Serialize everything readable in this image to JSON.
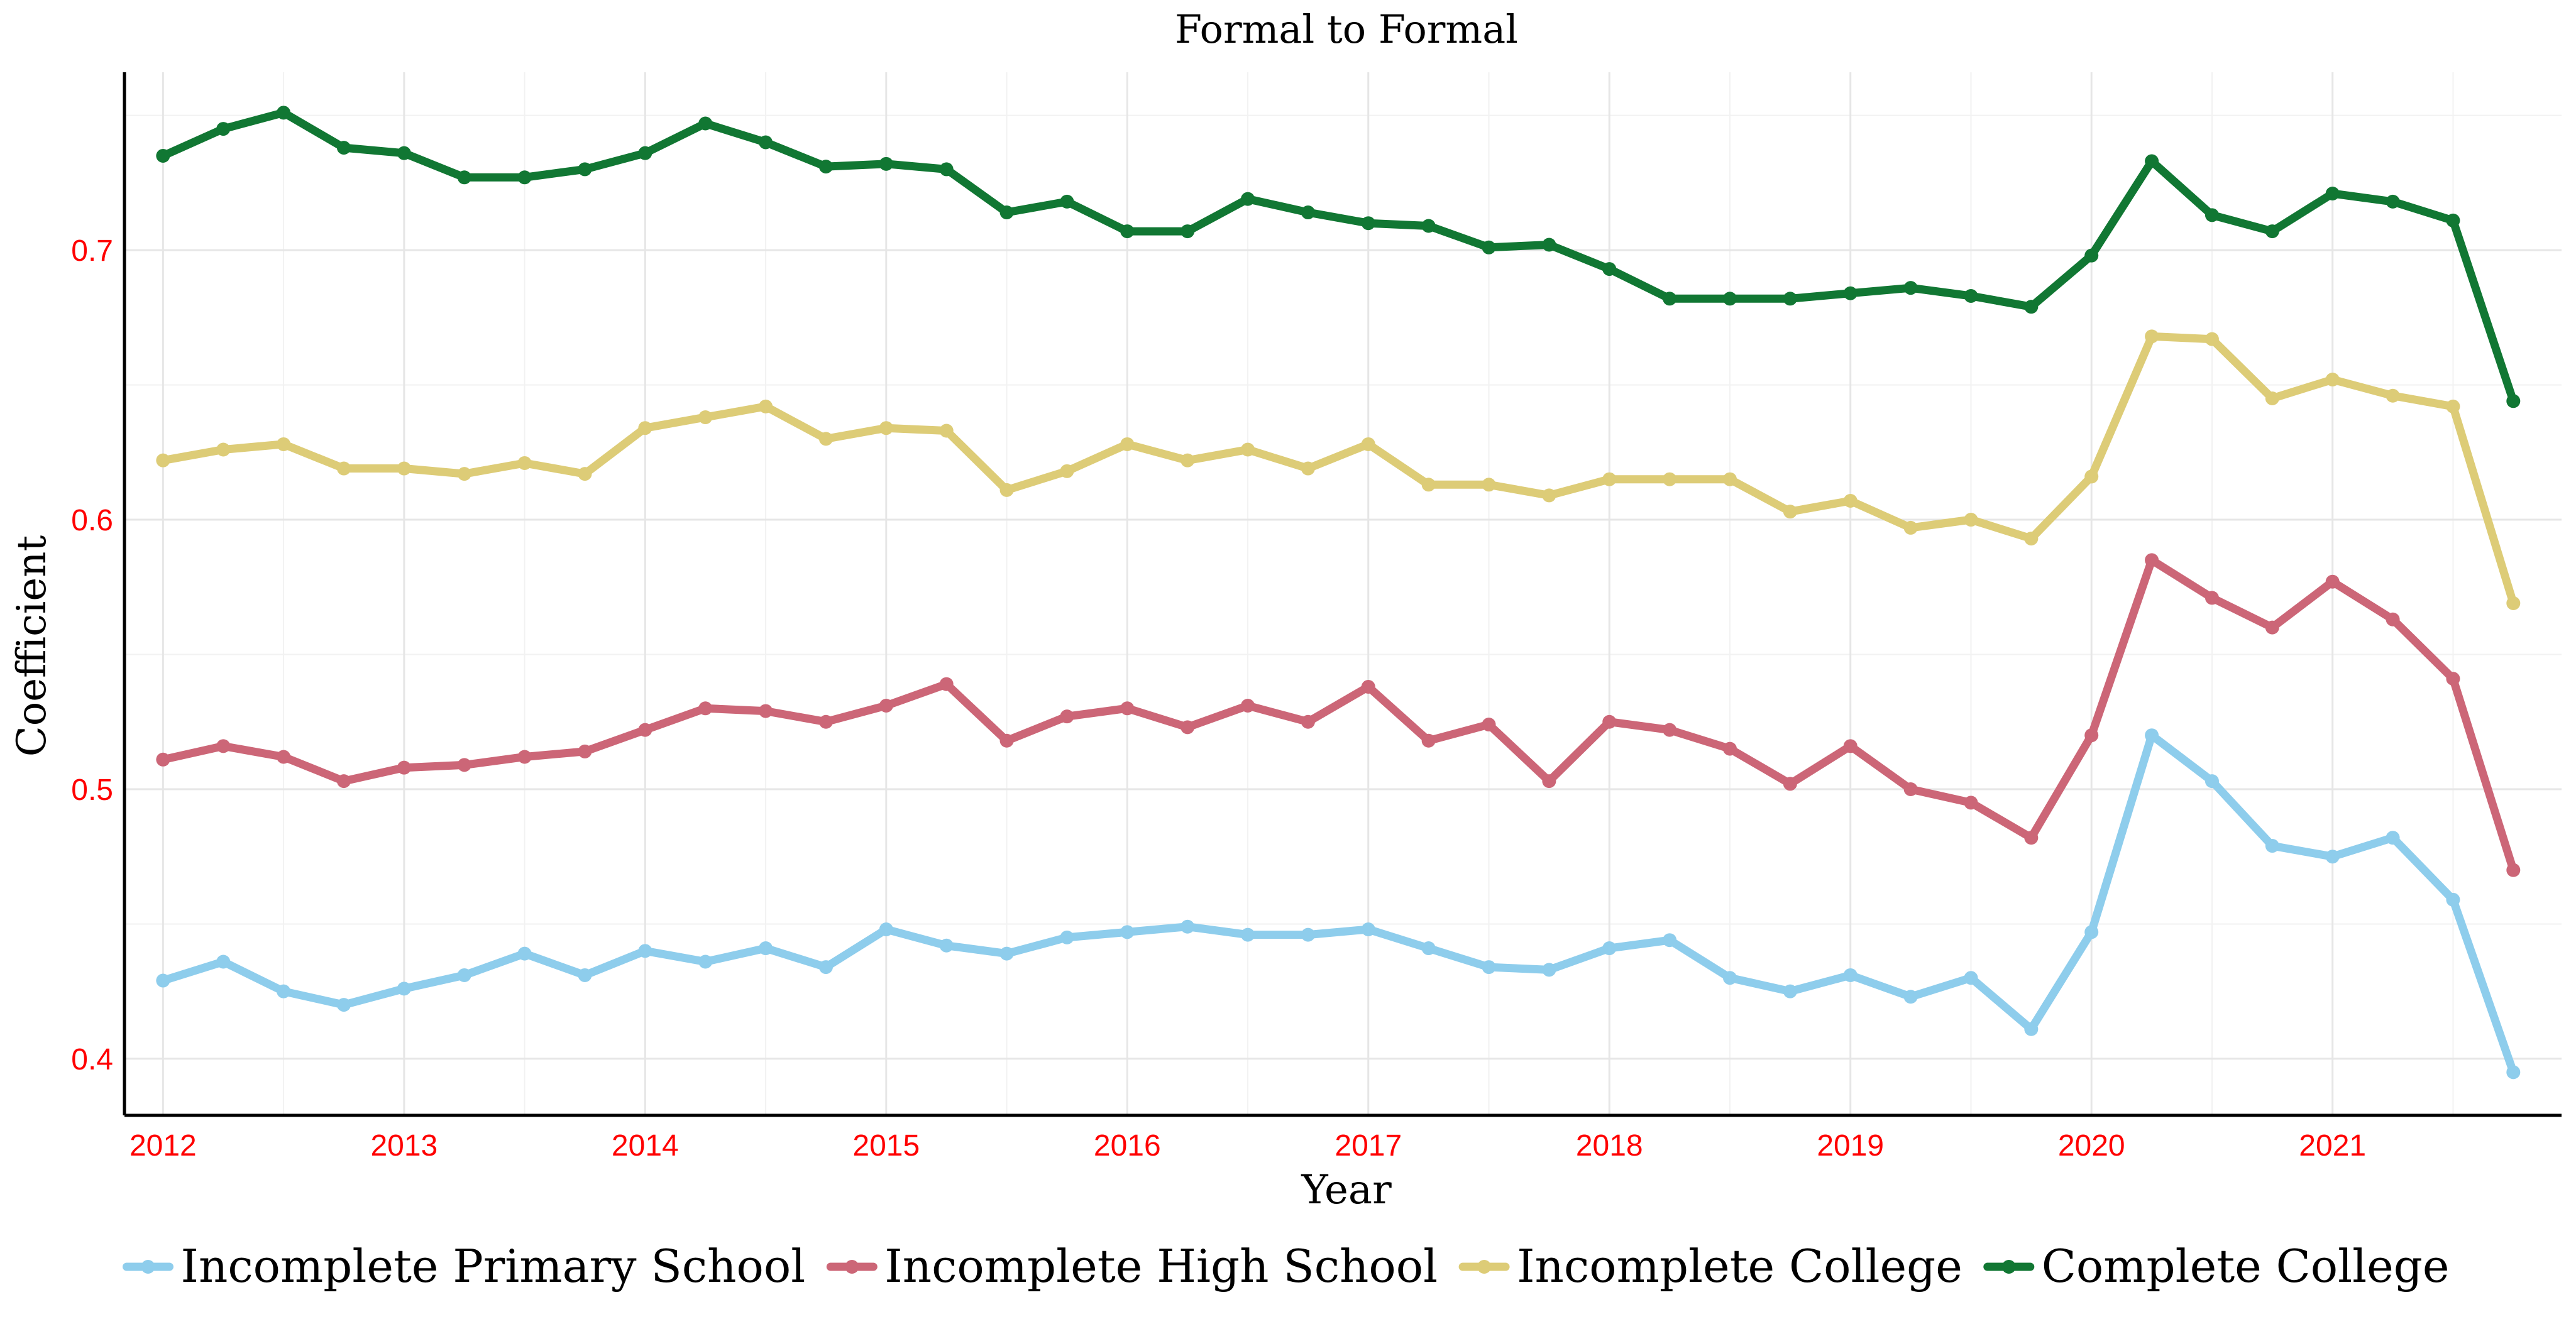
{
  "chart_data": {
    "type": "line",
    "title": "Formal to Formal",
    "xlabel": "Year",
    "ylabel": "Coefficient",
    "x_ticks": [
      "2012",
      "2013",
      "2014",
      "2015",
      "2016",
      "2017",
      "2018",
      "2019",
      "2020",
      "2021"
    ],
    "y_ticks": [
      "0.4",
      "0.5",
      "0.6",
      "0.7"
    ],
    "xlim": [
      2011.84,
      2021.95
    ],
    "ylim": [
      0.379,
      0.766
    ],
    "grid": true,
    "legend_position": "bottom",
    "tick_label_color": "#ff0000",
    "x": [
      2012.0,
      2012.25,
      2012.5,
      2012.75,
      2013.0,
      2013.25,
      2013.5,
      2013.75,
      2014.0,
      2014.25,
      2014.5,
      2014.75,
      2015.0,
      2015.25,
      2015.5,
      2015.75,
      2016.0,
      2016.25,
      2016.5,
      2016.75,
      2017.0,
      2017.25,
      2017.5,
      2017.75,
      2018.0,
      2018.25,
      2018.5,
      2018.75,
      2019.0,
      2019.25,
      2019.5,
      2019.75,
      2020.0,
      2020.25,
      2020.5,
      2020.75,
      2021.0,
      2021.25,
      2021.5,
      2021.75
    ],
    "series": [
      {
        "name": "Incomplete Primary School",
        "color": "#8ecdec",
        "values": [
          0.429,
          0.436,
          0.425,
          0.42,
          0.426,
          0.431,
          0.439,
          0.431,
          0.44,
          0.436,
          0.441,
          0.434,
          0.448,
          0.442,
          0.439,
          0.445,
          0.447,
          0.449,
          0.446,
          0.446,
          0.448,
          0.441,
          0.434,
          0.433,
          0.441,
          0.444,
          0.43,
          0.425,
          0.431,
          0.423,
          0.43,
          0.411,
          0.447,
          0.52,
          0.503,
          0.479,
          0.475,
          0.482,
          0.459,
          0.395
        ]
      },
      {
        "name": "Incomplete High School",
        "color": "#cc6677",
        "values": [
          0.511,
          0.516,
          0.512,
          0.503,
          0.508,
          0.509,
          0.512,
          0.514,
          0.522,
          0.53,
          0.529,
          0.525,
          0.531,
          0.539,
          0.518,
          0.527,
          0.53,
          0.523,
          0.531,
          0.525,
          0.538,
          0.518,
          0.524,
          0.503,
          0.525,
          0.522,
          0.515,
          0.502,
          0.516,
          0.5,
          0.495,
          0.482,
          0.52,
          0.585,
          0.571,
          0.56,
          0.577,
          0.563,
          0.541,
          0.47
        ]
      },
      {
        "name": "Incomplete College",
        "color": "#ddcc77",
        "values": [
          0.622,
          0.626,
          0.628,
          0.619,
          0.619,
          0.617,
          0.621,
          0.617,
          0.634,
          0.638,
          0.642,
          0.63,
          0.634,
          0.633,
          0.611,
          0.618,
          0.628,
          0.622,
          0.626,
          0.619,
          0.628,
          0.613,
          0.613,
          0.609,
          0.615,
          0.615,
          0.615,
          0.603,
          0.607,
          0.597,
          0.6,
          0.593,
          0.616,
          0.668,
          0.667,
          0.645,
          0.652,
          0.646,
          0.642,
          0.569
        ]
      },
      {
        "name": "Complete College",
        "color": "#117733",
        "values": [
          0.735,
          0.745,
          0.751,
          0.738,
          0.736,
          0.727,
          0.727,
          0.73,
          0.736,
          0.747,
          0.74,
          0.731,
          0.732,
          0.73,
          0.714,
          0.718,
          0.707,
          0.707,
          0.719,
          0.714,
          0.71,
          0.709,
          0.701,
          0.702,
          0.693,
          0.682,
          0.682,
          0.682,
          0.684,
          0.686,
          0.683,
          0.679,
          0.698,
          0.733,
          0.713,
          0.707,
          0.721,
          0.718,
          0.711,
          0.644
        ]
      }
    ]
  }
}
